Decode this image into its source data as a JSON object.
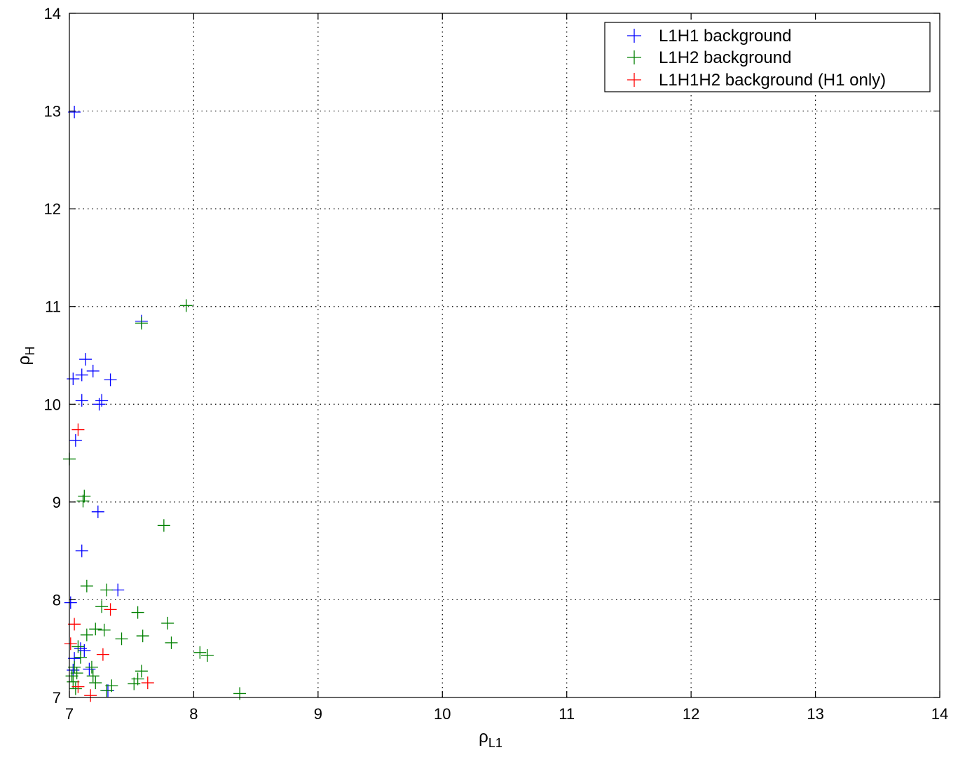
{
  "chart_data": {
    "type": "scatter",
    "marker": "plus",
    "xlim": [
      7,
      14
    ],
    "ylim": [
      7,
      14
    ],
    "xticks": [
      "7",
      "8",
      "9",
      "10",
      "11",
      "12",
      "13",
      "14"
    ],
    "yticks": [
      "7",
      "8",
      "9",
      "10",
      "11",
      "12",
      "13",
      "14"
    ],
    "grid": true,
    "grid_style": "dotted",
    "legend_position": "top-right",
    "xlabel": {
      "base": "ρ",
      "sub": "L1"
    },
    "ylabel": {
      "base": "ρ",
      "sub": "H"
    },
    "series": [
      {
        "name": "L1H1 background",
        "color": "#0000ff",
        "points": [
          [
            7.04,
            12.99
          ],
          [
            7.58,
            10.85
          ],
          [
            7.13,
            10.46
          ],
          [
            7.03,
            10.26
          ],
          [
            7.1,
            10.3
          ],
          [
            7.19,
            10.34
          ],
          [
            7.33,
            10.25
          ],
          [
            7.1,
            10.04
          ],
          [
            7.26,
            10.04
          ],
          [
            7.24,
            10.0
          ],
          [
            7.05,
            9.63
          ],
          [
            7.23,
            8.9
          ],
          [
            7.1,
            8.5
          ],
          [
            7.39,
            8.1
          ],
          [
            7.01,
            7.97
          ],
          [
            7.09,
            7.5
          ],
          [
            7.12,
            7.48
          ],
          [
            7.04,
            7.4
          ],
          [
            7.03,
            7.28
          ],
          [
            7.16,
            7.29
          ],
          [
            7.31,
            7.07
          ]
        ]
      },
      {
        "name": "L1H2 background",
        "color": "#008000",
        "points": [
          [
            7.94,
            11.01
          ],
          [
            7.58,
            10.83
          ],
          [
            7.0,
            9.44
          ],
          [
            7.12,
            9.06
          ],
          [
            7.11,
            9.01
          ],
          [
            7.76,
            8.76
          ],
          [
            7.14,
            8.14
          ],
          [
            7.3,
            8.1
          ],
          [
            7.26,
            7.93
          ],
          [
            7.55,
            7.87
          ],
          [
            7.79,
            7.76
          ],
          [
            7.21,
            7.7
          ],
          [
            7.28,
            7.69
          ],
          [
            7.14,
            7.64
          ],
          [
            7.59,
            7.63
          ],
          [
            7.42,
            7.6
          ],
          [
            7.82,
            7.56
          ],
          [
            7.07,
            7.52
          ],
          [
            8.05,
            7.46
          ],
          [
            8.11,
            7.43
          ],
          [
            7.09,
            7.41
          ],
          [
            7.04,
            7.31
          ],
          [
            7.18,
            7.31
          ],
          [
            7.58,
            7.27
          ],
          [
            7.06,
            7.25
          ],
          [
            7.02,
            7.22
          ],
          [
            7.19,
            7.22
          ],
          [
            7.55,
            7.19
          ],
          [
            7.03,
            7.16
          ],
          [
            7.52,
            7.14
          ],
          [
            7.21,
            7.15
          ],
          [
            7.34,
            7.12
          ],
          [
            7.05,
            7.09
          ],
          [
            7.3,
            7.07
          ],
          [
            8.37,
            7.04
          ]
        ]
      },
      {
        "name": "L1H1H2 background (H1 only)",
        "color": "#ff0000",
        "points": [
          [
            7.07,
            9.74
          ],
          [
            7.04,
            7.75
          ],
          [
            7.33,
            7.9
          ],
          [
            7.01,
            7.55
          ],
          [
            7.27,
            7.44
          ],
          [
            7.63,
            7.15
          ],
          [
            7.07,
            7.11
          ],
          [
            7.17,
            7.02
          ]
        ]
      }
    ]
  }
}
